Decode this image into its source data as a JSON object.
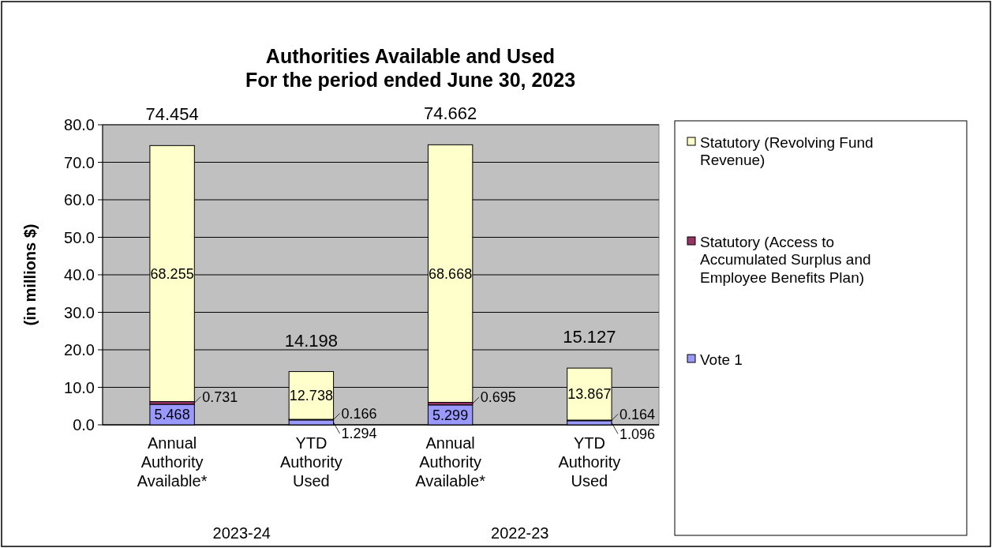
{
  "chart_data": {
    "type": "bar",
    "title": "Authorities Available and Used\nFor the period ended June 30, 2023",
    "ylabel": "(in millions $)",
    "categories": [
      "Annual Authority Available*",
      "YTD Authority Used",
      "Annual Authority Available*",
      "YTD Authority Used"
    ],
    "annotations": [
      "2023-24",
      "2022-23"
    ],
    "stacked": true,
    "series": [
      {
        "name": "Vote 1",
        "color": "#9999ff",
        "values": [
          5.468,
          1.294,
          5.299,
          1.096
        ]
      },
      {
        "name": "Statutory (Access to Accumulated Surplus and Employee Benefits Plan)",
        "color": "#993366",
        "values": [
          0.731,
          0.166,
          0.695,
          0.164
        ]
      },
      {
        "name": "Statutory (Revolving Fund Revenue)",
        "color": "#ffffcc",
        "values": [
          68.255,
          12.738,
          68.668,
          13.867
        ]
      }
    ],
    "totals": [
      "74.454",
      "14.198",
      "74.662",
      "15.127"
    ],
    "data_labels": true,
    "ylim": [
      0,
      80
    ],
    "yticks": [
      {
        "value": 0,
        "label": "0.0"
      },
      {
        "value": 10,
        "label": "10.0"
      },
      {
        "value": 20,
        "label": "20.0"
      },
      {
        "value": 30,
        "label": "30.0"
      },
      {
        "value": 40,
        "label": "40.0"
      },
      {
        "value": 50,
        "label": "50.0"
      },
      {
        "value": 60,
        "label": "60.0"
      },
      {
        "value": 70,
        "label": "70.0"
      },
      {
        "value": 80,
        "label": "80.0"
      }
    ],
    "grid": "y",
    "legend": "right"
  }
}
